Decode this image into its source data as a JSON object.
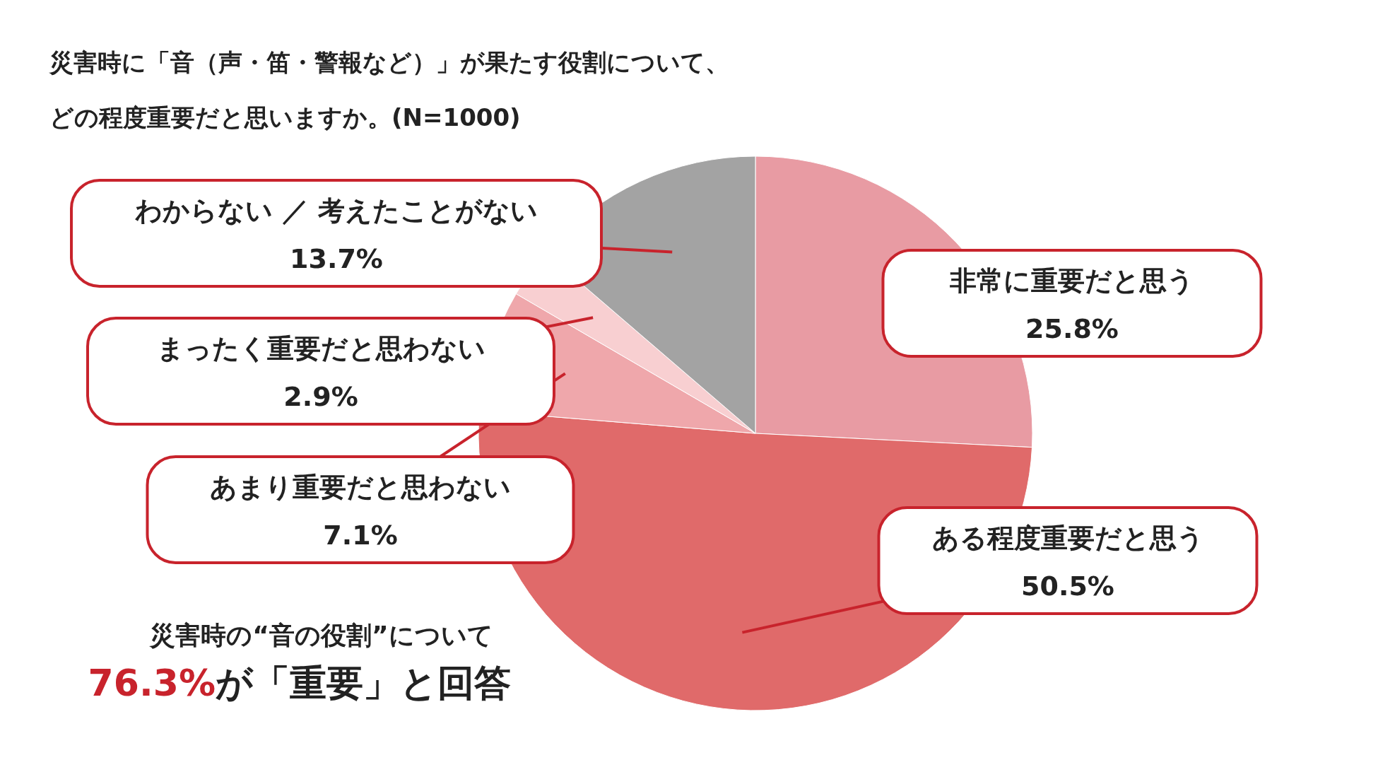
{
  "chart_data": {
    "type": "pie",
    "title": "災害時に「音（声・笛・警報など）」が果たす役割について、",
    "subtitle": "どの程度重要だと思いますか。(N=1000)",
    "categories": [
      "非常に重要だと思う",
      "ある程度重要だと思う",
      "あまり重要だと思わない",
      "まったく重要だと思わない",
      "わからない ／ 考えたことがない"
    ],
    "values": [
      25.8,
      50.5,
      7.1,
      2.9,
      13.7
    ],
    "value_labels": [
      "25.8%",
      "50.5%",
      "7.1%",
      "2.9%",
      "13.7%"
    ],
    "colors": [
      "#e89ba3",
      "#e06a6a",
      "#efa7ab",
      "#f8cfd1",
      "#a3a3a3"
    ],
    "annotations": [
      "災害時の“音の役割”について",
      "76.3%",
      "が「重要」と回答"
    ]
  }
}
